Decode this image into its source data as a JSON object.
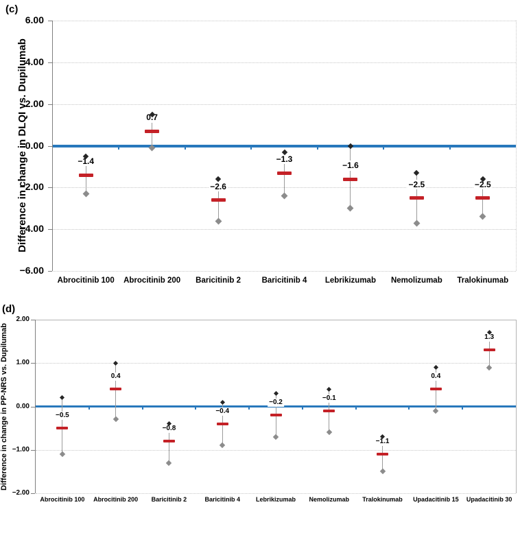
{
  "colors": {
    "reference_line_blue": "#2878BC",
    "estimate_dash_red": "#C42127",
    "upper_marker_black": "#262626",
    "lower_marker_grey": "#8C8C8C",
    "whisker_grey": "#9B9B9B",
    "gridline_grey": "#C6C6C6",
    "axis_grey": "#7F7F7F"
  },
  "chart_data": [
    {
      "type": "scatter",
      "panel_label": "(c)",
      "title": "",
      "ylabel": "Difference in change in DLQI vs. Dupilumab",
      "xlabel": "",
      "ylim": [
        -6,
        6
      ],
      "ytick_step": 2,
      "ytick_labels": [
        "6.00",
        "4.00",
        "2.00",
        "0.00",
        "−2.00",
        "−4.00",
        "−6.00"
      ],
      "grid": "horizontal dotted gridlines, dotted top and right border",
      "legend": "none",
      "reference_line": {
        "value": 0,
        "color": "#2878BC"
      },
      "categories": [
        "Abrocitinib 100",
        "Abrocitinib 200",
        "Baricitinib 2",
        "Baricitinib 4",
        "Lebrikizumab",
        "Nemolizumab",
        "Tralokinumab"
      ],
      "series": [
        {
          "name": "point estimate",
          "marker": "red dash",
          "values": [
            -1.4,
            0.7,
            -2.6,
            -1.3,
            -1.6,
            -2.5,
            -2.5
          ]
        },
        {
          "name": "upper bound",
          "marker": "black diamond",
          "values": [
            -0.5,
            1.5,
            -1.6,
            -0.3,
            0.0,
            -1.3,
            -1.6
          ]
        },
        {
          "name": "lower bound",
          "marker": "grey diamond",
          "values": [
            -2.3,
            -0.1,
            -3.6,
            -2.4,
            -3.0,
            -3.7,
            -3.4
          ]
        }
      ],
      "data_labels": [
        "−1.4",
        "0.7",
        "−2.6",
        "−1.3",
        "−1.6",
        "−2.5",
        "−2.5"
      ]
    },
    {
      "type": "scatter",
      "panel_label": "(d)",
      "title": "",
      "ylabel": "Difference in change in PP-NRS vs. Dupilumab",
      "xlabel": "",
      "ylim": [
        -2,
        2
      ],
      "ytick_step": 1,
      "ytick_labels": [
        "2.00",
        "1.00",
        "0.00",
        "−1.00",
        "−2.00"
      ],
      "grid": "horizontal dotted gridlines, solid top and right border",
      "legend": "none",
      "reference_line": {
        "value": 0,
        "color": "#2878BC"
      },
      "categories": [
        "Abrocitinib 100",
        "Abrocitinib 200",
        "Baricitinib 2",
        "Baricitinib 4",
        "Lebrikizumab",
        "Nemolizumab",
        "Tralokinumab",
        "Upadacitinib 15",
        "Upadacitinib 30"
      ],
      "series": [
        {
          "name": "point estimate",
          "marker": "red dash",
          "values": [
            -0.5,
            0.4,
            -0.8,
            -0.4,
            -0.2,
            -0.1,
            -1.1,
            0.4,
            1.3
          ]
        },
        {
          "name": "upper bound",
          "marker": "black diamond",
          "values": [
            0.2,
            1.0,
            -0.4,
            0.1,
            0.3,
            0.4,
            -0.7,
            0.9,
            1.7
          ]
        },
        {
          "name": "lower bound",
          "marker": "grey diamond",
          "values": [
            -1.1,
            -0.3,
            -1.3,
            -0.9,
            -0.7,
            -0.6,
            -1.5,
            -0.1,
            0.9
          ]
        }
      ],
      "data_labels": [
        "−0.5",
        "0.4",
        "−0.8",
        "−0.4",
        "−0.2",
        "−0.1",
        "−1.1",
        "0.4",
        "1.3"
      ]
    }
  ]
}
